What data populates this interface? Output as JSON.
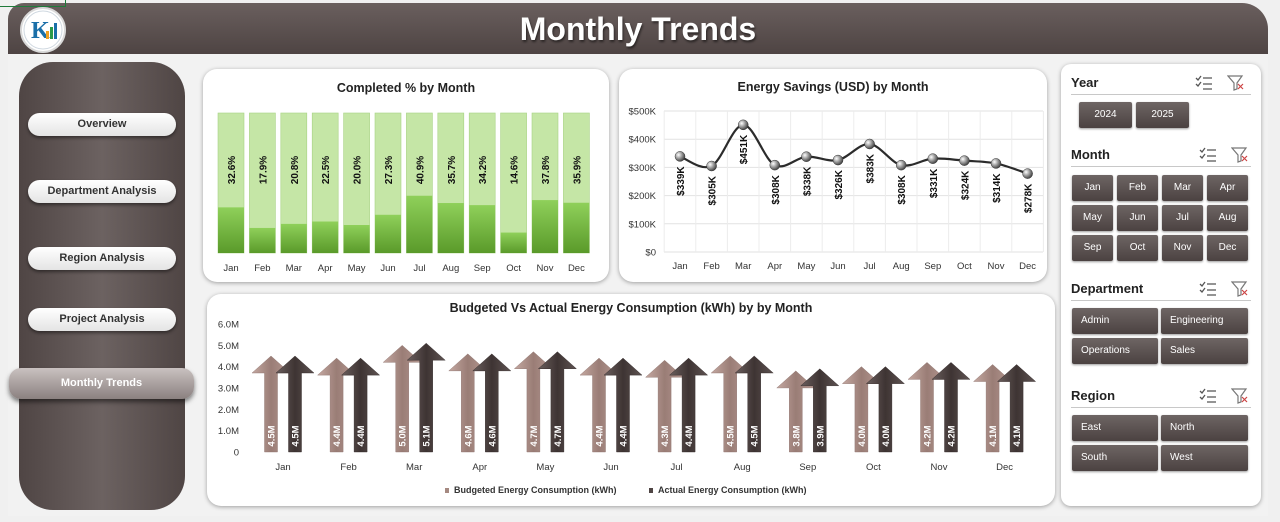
{
  "header": {
    "title": "Monthly Trends",
    "logo_text": "K"
  },
  "nav": {
    "items": [
      {
        "label": "Overview",
        "active": false
      },
      {
        "label": "Department Analysis",
        "active": false
      },
      {
        "label": "Region Analysis",
        "active": false
      },
      {
        "label": "Project Analysis",
        "active": false
      },
      {
        "label": "Monthly Trends",
        "active": true
      }
    ]
  },
  "colors": {
    "header": "#5b504f",
    "bar_green": "#8cc95e",
    "bar_bg": "#c8e6a8",
    "budget": "#a58981",
    "actual": "#4f4544"
  },
  "chart_data": [
    {
      "type": "bar",
      "title": "Completed % by Month",
      "categories": [
        "Jan",
        "Feb",
        "Mar",
        "Apr",
        "May",
        "Jun",
        "Jul",
        "Aug",
        "Sep",
        "Oct",
        "Nov",
        "Dec"
      ],
      "values": [
        32.6,
        17.9,
        20.8,
        22.5,
        20.0,
        27.3,
        40.9,
        35.7,
        34.2,
        14.6,
        37.8,
        35.9
      ],
      "labels": [
        "32.6%",
        "17.9%",
        "20.8%",
        "22.5%",
        "20.0%",
        "27.3%",
        "40.9%",
        "35.7%",
        "34.2%",
        "14.6%",
        "37.8%",
        "35.9%"
      ],
      "ylim": [
        0,
        100
      ]
    },
    {
      "type": "line",
      "title": "Energy Savings (USD) by Month",
      "categories": [
        "Jan",
        "Feb",
        "Mar",
        "Apr",
        "May",
        "Jun",
        "Jul",
        "Aug",
        "Sep",
        "Oct",
        "Nov",
        "Dec"
      ],
      "values": [
        339,
        305,
        451,
        308,
        338,
        326,
        383,
        308,
        331,
        324,
        314,
        278
      ],
      "labels": [
        "$339K",
        "$305K",
        "$451K",
        "$308K",
        "$338K",
        "$326K",
        "$383K",
        "$308K",
        "$331K",
        "$324K",
        "$314K",
        "$278K"
      ],
      "yticks": [
        "$0",
        "$100K",
        "$200K",
        "$300K",
        "$400K",
        "$500K"
      ],
      "ylim": [
        0,
        500
      ]
    },
    {
      "type": "bar",
      "title": "Budgeted Vs Actual Energy Consumption (kWh) by by Month",
      "categories": [
        "Jan",
        "Feb",
        "Mar",
        "Apr",
        "May",
        "Jun",
        "Jul",
        "Aug",
        "Sep",
        "Oct",
        "Nov",
        "Dec"
      ],
      "series": [
        {
          "name": "Budgeted Energy Consumption (kWh)",
          "values": [
            4.5,
            4.4,
            5.0,
            4.6,
            4.7,
            4.4,
            4.3,
            4.5,
            3.8,
            4.0,
            4.2,
            4.1
          ],
          "labels": [
            "4.5M",
            "4.4M",
            "5.0M",
            "4.6M",
            "4.7M",
            "4.4M",
            "4.3M",
            "4.5M",
            "3.8M",
            "4.0M",
            "4.2M",
            "4.1M"
          ]
        },
        {
          "name": "Actual Energy Consumption (kWh)",
          "values": [
            4.5,
            4.4,
            5.1,
            4.6,
            4.7,
            4.4,
            4.4,
            4.5,
            3.9,
            4.0,
            4.2,
            4.1
          ],
          "labels": [
            "4.5M",
            "4.4M",
            "5.1M",
            "4.6M",
            "4.7M",
            "4.4M",
            "4.4M",
            "4.5M",
            "3.9M",
            "4.0M",
            "4.2M",
            "4.1M"
          ]
        }
      ],
      "yticks": [
        "0",
        "1.0M",
        "2.0M",
        "3.0M",
        "4.0M",
        "5.0M",
        "6.0M"
      ],
      "ylim": [
        0,
        6
      ]
    }
  ],
  "slicers": {
    "year": {
      "title": "Year",
      "items": [
        "2024",
        "2025"
      ]
    },
    "month": {
      "title": "Month",
      "items": [
        "Jan",
        "Feb",
        "Mar",
        "Apr",
        "May",
        "Jun",
        "Jul",
        "Aug",
        "Sep",
        "Oct",
        "Nov",
        "Dec"
      ]
    },
    "department": {
      "title": "Department",
      "items": [
        "Admin",
        "Engineering",
        "Operations",
        "Sales"
      ]
    },
    "region": {
      "title": "Region",
      "items": [
        "East",
        "North",
        "South",
        "West"
      ]
    }
  }
}
